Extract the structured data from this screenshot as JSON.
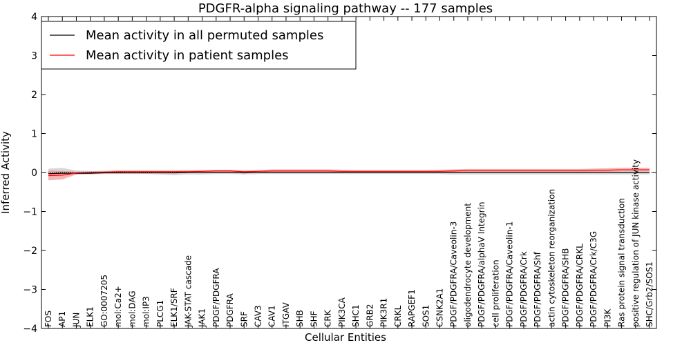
{
  "chart_data": {
    "type": "line",
    "title": "PDGFR-alpha signaling pathway -- 177 samples",
    "xlabel": "Cellular Entities",
    "ylabel": "Inferred Activity",
    "ylim": [
      -4,
      4
    ],
    "yticks": [
      4,
      3,
      2,
      1,
      0,
      -1,
      -2,
      -3,
      -4
    ],
    "ytick_labels": [
      "4",
      "3",
      "2",
      "1",
      "0",
      "−1",
      "−2",
      "−3",
      "−4"
    ],
    "legend_position": "top-left",
    "reference_line": 0,
    "categories": [
      "FOS",
      "AP1",
      "JUN",
      "ELK1",
      "GO:0007205",
      "mol:Ca2+",
      "mol:DAG",
      "mol:IP3",
      "PLCG1",
      "ELK1/SRF",
      "JAK-STAT cascade",
      "JAK1",
      "PDGF/PDGFRA",
      "PDGFRA",
      "SRF",
      "CAV3",
      "CAV1",
      "ITGAV",
      "SHB",
      "SHF",
      "CRK",
      "PIK3CA",
      "SHC1",
      "GRB2",
      "PIK3R1",
      "CRKL",
      "RAPGEF1",
      "SOS1",
      "CSNK2A1",
      "PDGF/PDGFRA/Caveolin-3",
      "oligodendrocyte development",
      "PDGF/PDGFRA/alphaV Integrin",
      "cell proliferation",
      "PDGF/PDGFRA/Caveolin-1",
      "PDGF/PDGFRA/Crk",
      "PDGF/PDGFRA/Shf",
      "actin cytoskeleton reorganization",
      "PDGF/PDGFRA/SHB",
      "PDGF/PDGFRA/CRKL",
      "PDGF/PDGFRA/Crk/C3G",
      "PI3K",
      "Ras protein signal transduction",
      "positive regulation of JUN kinase activity",
      "SHC/Grb2/SOS1"
    ],
    "series": [
      {
        "name": "Mean activity in all permuted samples",
        "color": "#000000",
        "band_color": "#a9a9a9",
        "values": [
          -0.03,
          -0.02,
          -0.02,
          -0.02,
          -0.01,
          -0.01,
          -0.01,
          -0.01,
          -0.01,
          -0.01,
          0.0,
          0.0,
          0.0,
          0.0,
          -0.01,
          0.0,
          0.0,
          0.0,
          0.0,
          0.0,
          0.0,
          0.0,
          0.0,
          0.0,
          0.0,
          0.0,
          0.0,
          0.0,
          0.0,
          0.0,
          0.0,
          0.0,
          0.0,
          0.0,
          0.0,
          0.0,
          0.0,
          0.0,
          0.0,
          0.0,
          0.0,
          0.0,
          0.0,
          0.0
        ],
        "band_low": [
          -0.1,
          -0.08,
          -0.05,
          -0.05,
          -0.04,
          -0.04,
          -0.04,
          -0.04,
          -0.05,
          -0.07,
          -0.05,
          -0.05,
          -0.04,
          -0.04,
          -0.05,
          -0.04,
          -0.04,
          -0.04,
          -0.04,
          -0.04,
          -0.04,
          -0.04,
          -0.04,
          -0.04,
          -0.04,
          -0.04,
          -0.04,
          -0.04,
          -0.04,
          -0.05,
          -0.05,
          -0.05,
          -0.05,
          -0.05,
          -0.05,
          -0.05,
          -0.05,
          -0.05,
          -0.05,
          -0.05,
          -0.05,
          -0.05,
          -0.05,
          -0.05
        ],
        "band_high": [
          0.1,
          0.12,
          0.05,
          0.04,
          0.04,
          0.04,
          0.04,
          0.04,
          0.04,
          0.04,
          0.04,
          0.04,
          0.04,
          0.04,
          0.04,
          0.04,
          0.04,
          0.04,
          0.04,
          0.04,
          0.04,
          0.04,
          0.04,
          0.04,
          0.04,
          0.04,
          0.04,
          0.04,
          0.04,
          0.04,
          0.04,
          0.04,
          0.04,
          0.04,
          0.04,
          0.04,
          0.04,
          0.04,
          0.04,
          0.04,
          0.04,
          0.04,
          0.04,
          0.04
        ]
      },
      {
        "name": "Mean activity in patient samples",
        "color": "#ff0000",
        "band_color": "#f08080",
        "values": [
          -0.08,
          -0.07,
          -0.01,
          0.0,
          0.01,
          0.02,
          0.02,
          0.02,
          0.02,
          0.02,
          0.02,
          0.03,
          0.04,
          0.04,
          0.02,
          0.03,
          0.04,
          0.04,
          0.04,
          0.04,
          0.04,
          0.03,
          0.03,
          0.03,
          0.03,
          0.03,
          0.03,
          0.03,
          0.03,
          0.04,
          0.05,
          0.05,
          0.05,
          0.05,
          0.05,
          0.05,
          0.05,
          0.05,
          0.05,
          0.06,
          0.06,
          0.07,
          0.07,
          0.07
        ],
        "band_low": [
          -0.2,
          -0.18,
          -0.05,
          -0.03,
          -0.02,
          -0.01,
          -0.01,
          -0.01,
          -0.01,
          -0.01,
          -0.01,
          0.0,
          0.0,
          0.01,
          -0.01,
          0.0,
          0.01,
          0.01,
          0.01,
          0.01,
          0.01,
          0.0,
          0.0,
          0.0,
          0.0,
          0.0,
          0.0,
          0.0,
          0.0,
          0.01,
          0.01,
          0.01,
          0.01,
          0.01,
          0.01,
          0.01,
          0.01,
          0.01,
          0.01,
          0.02,
          0.02,
          0.03,
          0.03,
          0.03
        ],
        "band_high": [
          0.05,
          0.04,
          0.02,
          0.03,
          0.04,
          0.05,
          0.05,
          0.05,
          0.05,
          0.05,
          0.06,
          0.06,
          0.07,
          0.07,
          0.05,
          0.06,
          0.08,
          0.08,
          0.08,
          0.08,
          0.08,
          0.07,
          0.06,
          0.06,
          0.06,
          0.06,
          0.06,
          0.06,
          0.07,
          0.08,
          0.09,
          0.09,
          0.09,
          0.09,
          0.09,
          0.09,
          0.09,
          0.09,
          0.09,
          0.1,
          0.11,
          0.12,
          0.12,
          0.12
        ]
      }
    ]
  }
}
